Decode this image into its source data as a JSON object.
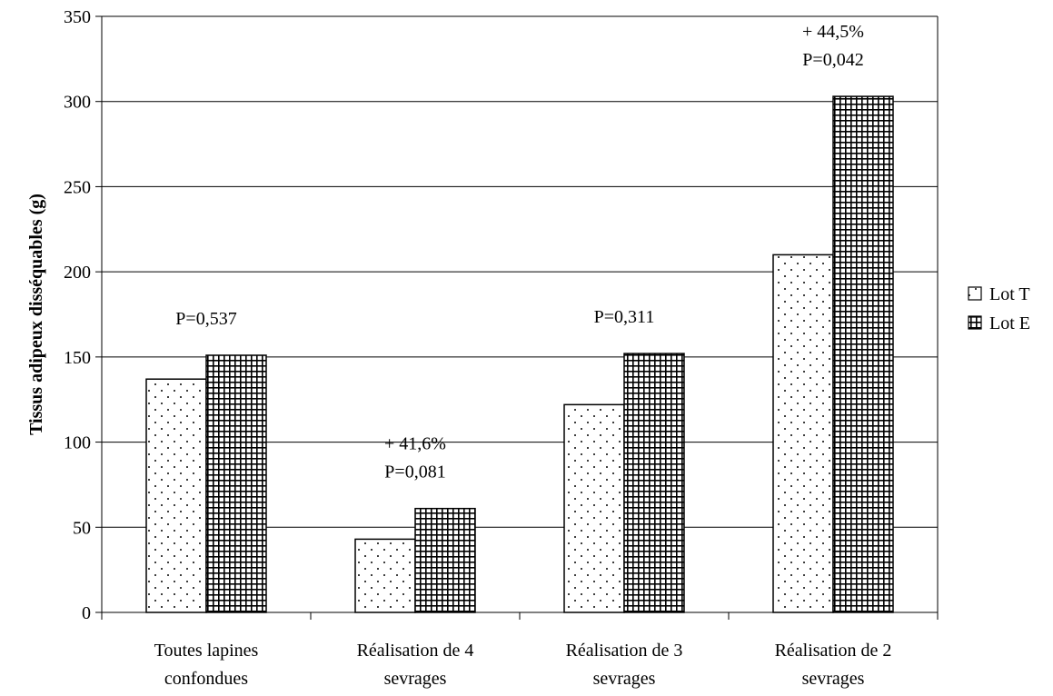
{
  "chart_data": {
    "type": "bar",
    "categories": [
      [
        "Toutes lapines",
        "confondues"
      ],
      [
        "Réalisation de 4",
        "sevrages"
      ],
      [
        "Réalisation de 3",
        "sevrages"
      ],
      [
        "Réalisation de 2",
        "sevrages"
      ]
    ],
    "series": [
      {
        "name": "Lot T",
        "pattern": "dots",
        "values": [
          137,
          43,
          122,
          210
        ]
      },
      {
        "name": "Lot E",
        "pattern": "grid",
        "values": [
          151,
          61,
          152,
          303
        ]
      }
    ],
    "annotations": [
      {
        "category": 0,
        "lines": [
          "P=0,537"
        ]
      },
      {
        "category": 1,
        "lines": [
          "+ 41,6%",
          "P=0,081"
        ]
      },
      {
        "category": 2,
        "lines": [
          "P=0,311"
        ]
      },
      {
        "category": 3,
        "lines": [
          "+ 44,5%",
          "P=0,042"
        ]
      }
    ],
    "title": "",
    "xlabel": "",
    "ylabel": "Tissus adipeux disséquables (g)",
    "ylim": [
      0,
      350
    ],
    "yticks": [
      0,
      50,
      100,
      150,
      200,
      250,
      300,
      350
    ],
    "grid": true,
    "legend_position": "right",
    "colors": {
      "bar_fill": "#ffffff",
      "bar_stroke": "#000000",
      "grid": "#000000"
    }
  }
}
